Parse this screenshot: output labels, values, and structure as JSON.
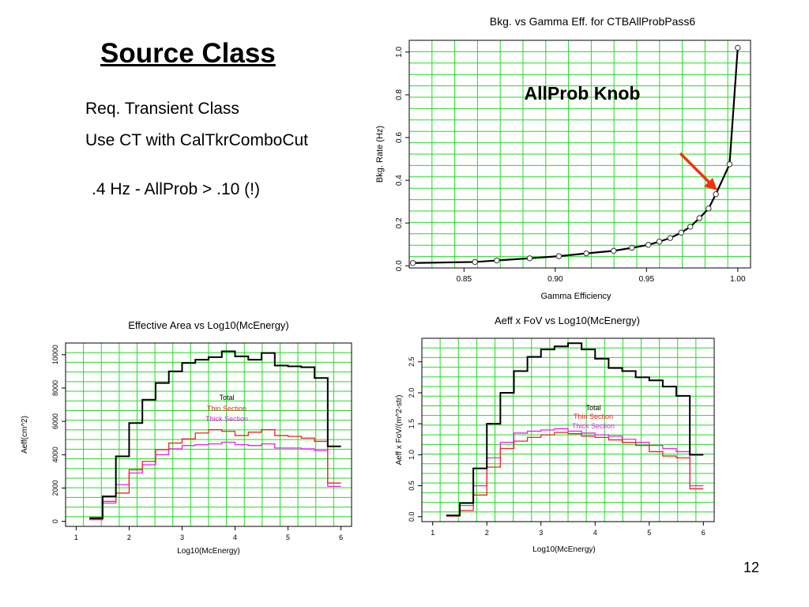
{
  "slide": {
    "title": "Source Class",
    "lines": [
      "Req. Transient Class",
      "Use CT with CalTkrComboCut",
      ".4 Hz  -  AllProb > .10 (!)"
    ],
    "page_number": "12"
  },
  "colors": {
    "grid": "#22dd22",
    "total": "#000000",
    "thin": "#ee2222",
    "thick": "#ee22ee",
    "arrow": "#ee3311",
    "points": "#333333"
  },
  "chart_data": [
    {
      "type": "line",
      "title": "Bkg. vs Gamma Eff. for  CTBAllProbPass6",
      "xlabel": "Gamma Efficiency",
      "ylabel": "Bkg. Rate (Hz)",
      "annotation": "AllProb Knob",
      "xlim": [
        0.82,
        1.007
      ],
      "ylim": [
        -0.01,
        1.055
      ],
      "xticks": [
        0.85,
        0.9,
        0.95,
        1.0
      ],
      "xtick_labels": [
        "0.85",
        "0.90",
        "0.95",
        "1.00"
      ],
      "yticks": [
        0.0,
        0.2,
        0.4,
        0.6,
        0.8,
        1.0
      ],
      "ytick_labels": [
        "0.0",
        "0.2",
        "0.4",
        "0.6",
        "0.8",
        "1.0"
      ],
      "grid": true,
      "series": [
        {
          "x": [
            0.822,
            0.856,
            0.868,
            0.886,
            0.902,
            0.917,
            0.932,
            0.942,
            0.951,
            0.957,
            0.963,
            0.969,
            0.974,
            0.979,
            0.984,
            0.988,
            0.9955,
            1.0
          ],
          "y": [
            0.013,
            0.018,
            0.025,
            0.035,
            0.045,
            0.058,
            0.07,
            0.084,
            0.098,
            0.113,
            0.13,
            0.155,
            0.183,
            0.223,
            0.268,
            0.335,
            0.475,
            1.02
          ]
        }
      ]
    },
    {
      "type": "line",
      "title": "Effective Area vs Log10(McEnergy)",
      "xlabel": "Log10(McEnergy)",
      "ylabel": "Aeff(cm^2)",
      "xlim": [
        0.8,
        6.2
      ],
      "ylim": [
        -300,
        10700
      ],
      "xticks": [
        1,
        2,
        3,
        4,
        5,
        6
      ],
      "xtick_labels": [
        "1",
        "2",
        "3",
        "4",
        "5",
        "6"
      ],
      "yticks": [
        0,
        2000,
        4000,
        6000,
        8000,
        10000
      ],
      "ytick_labels": [
        "0",
        "2000",
        "4000",
        "6000",
        "8000",
        "10000"
      ],
      "grid": true,
      "x": [
        1.25,
        1.5,
        1.75,
        2.0,
        2.25,
        2.5,
        2.75,
        3.0,
        3.25,
        3.5,
        3.75,
        4.0,
        4.25,
        4.5,
        4.75,
        5.0,
        5.25,
        5.5,
        5.75
      ],
      "legend": [
        "Total",
        "Thin Section",
        "Thick Section"
      ],
      "series": [
        {
          "name": "Total",
          "values": [
            200,
            1500,
            3900,
            5900,
            7300,
            8300,
            9000,
            9500,
            9700,
            9850,
            10200,
            9900,
            9700,
            10100,
            9350,
            9300,
            9250,
            8600,
            4500
          ]
        },
        {
          "name": "Thin Section",
          "values": [
            150,
            1200,
            1700,
            3100,
            3600,
            4300,
            4700,
            4950,
            5300,
            5500,
            5400,
            5150,
            5350,
            5500,
            5150,
            5100,
            5000,
            4800,
            2300
          ]
        },
        {
          "name": "Thick Section",
          "values": [
            100,
            1100,
            2200,
            2900,
            3400,
            4000,
            4350,
            4550,
            4600,
            4650,
            4750,
            4600,
            4550,
            4650,
            4400,
            4400,
            4350,
            4250,
            2100
          ]
        }
      ]
    },
    {
      "type": "line",
      "title": "Aeff x FoV vs Log10(McEnergy)",
      "xlabel": "Log10(McEnergy)",
      "ylabel": "Aeff x FoV/(m^2-str)",
      "xlim": [
        0.8,
        6.2
      ],
      "ylim": [
        -0.08,
        2.88
      ],
      "xticks": [
        1,
        2,
        3,
        4,
        5,
        6
      ],
      "xtick_labels": [
        "1",
        "2",
        "3",
        "4",
        "5",
        "6"
      ],
      "yticks": [
        0.0,
        0.5,
        1.0,
        1.5,
        2.0,
        2.5
      ],
      "ytick_labels": [
        "0.0",
        "0.5",
        "1.0",
        "1.5",
        "2.0",
        "2.5"
      ],
      "grid": true,
      "x": [
        1.25,
        1.5,
        1.75,
        2.0,
        2.25,
        2.5,
        2.75,
        3.0,
        3.25,
        3.5,
        3.75,
        4.0,
        4.25,
        4.5,
        4.75,
        5.0,
        5.25,
        5.5,
        5.75
      ],
      "legend": [
        "Total",
        "Thin Section",
        "Thick Section"
      ],
      "series": [
        {
          "name": "Total",
          "values": [
            0.02,
            0.22,
            0.78,
            1.5,
            2.0,
            2.35,
            2.58,
            2.7,
            2.75,
            2.8,
            2.7,
            2.55,
            2.4,
            2.35,
            2.25,
            2.2,
            2.1,
            1.95,
            1.0
          ]
        },
        {
          "name": "Thin Section",
          "values": [
            0.01,
            0.1,
            0.35,
            0.8,
            1.1,
            1.22,
            1.28,
            1.32,
            1.36,
            1.34,
            1.3,
            1.28,
            1.24,
            1.2,
            1.15,
            1.05,
            0.98,
            0.95,
            0.45
          ]
        },
        {
          "name": "Thick Section",
          "values": [
            0.01,
            0.18,
            0.5,
            0.95,
            1.2,
            1.35,
            1.38,
            1.4,
            1.42,
            1.38,
            1.35,
            1.32,
            1.3,
            1.25,
            1.2,
            1.15,
            1.1,
            1.05,
            0.5
          ]
        }
      ]
    }
  ]
}
